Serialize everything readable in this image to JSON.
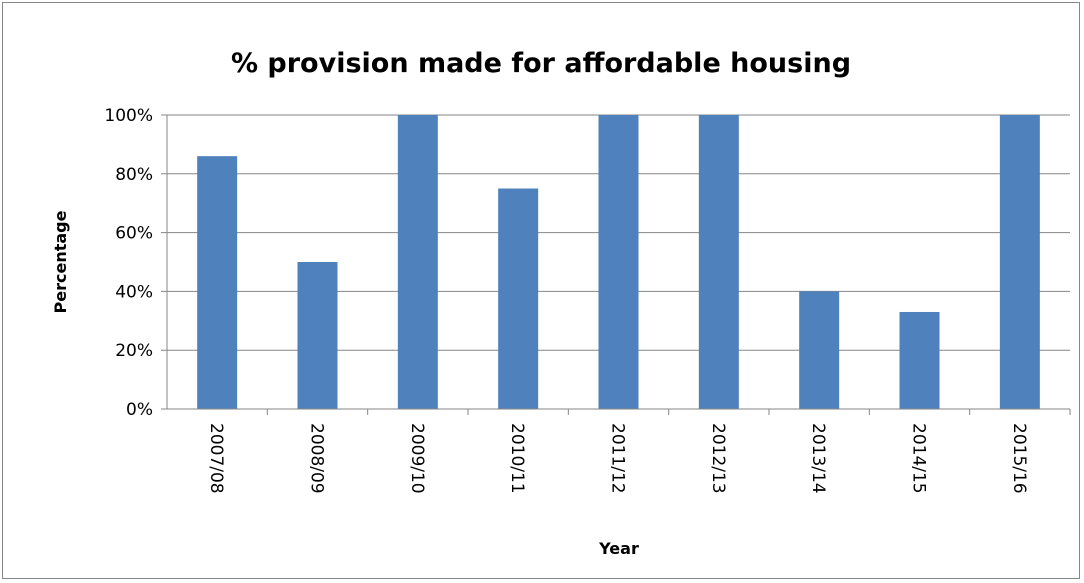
{
  "chart_data": {
    "type": "bar",
    "title": "% provision made for affordable housing",
    "xlabel": "Year",
    "ylabel": "Percentage",
    "categories": [
      "2007/08",
      "2008/09",
      "2009/10",
      "2010/11",
      "2011/12",
      "2012/13",
      "2013/14",
      "2014/15",
      "2015/16"
    ],
    "values": [
      86,
      50,
      100,
      75,
      100,
      100,
      40,
      33,
      100
    ],
    "ylim": [
      0,
      100
    ],
    "yticks": [
      "0%",
      "20%",
      "40%",
      "60%",
      "80%",
      "100%"
    ],
    "grid": true,
    "legend": "none",
    "bar_color": "#4F81BD",
    "gridline_color": "#868686"
  }
}
